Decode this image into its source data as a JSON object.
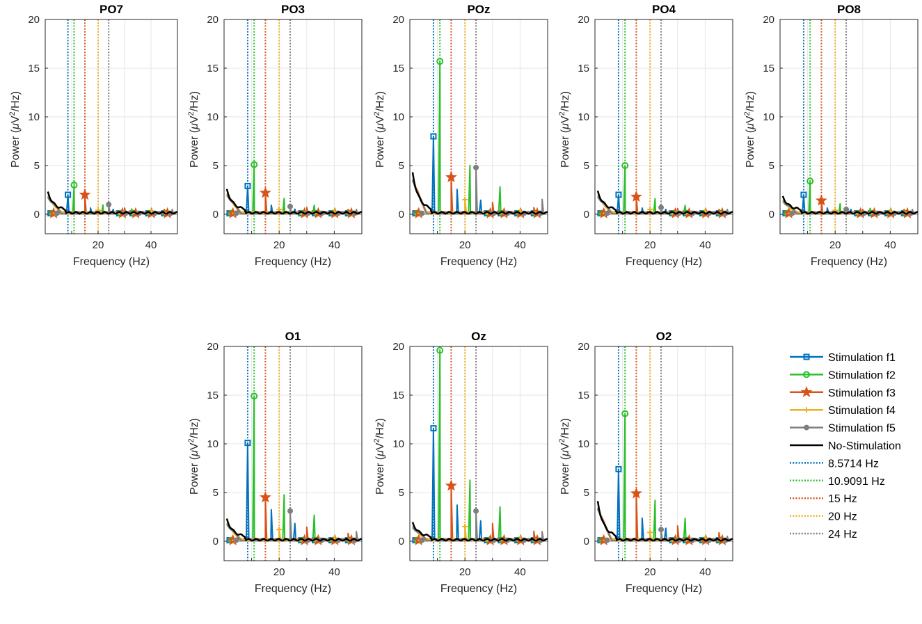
{
  "figure": {
    "legend_placement": "bottom-right"
  },
  "chart_data": {
    "type": "line",
    "xlabel": "Frequency (Hz)",
    "ylabel": {
      "prefix": "Power (",
      "mu": "μ",
      "unit1": "V",
      "sup": "2",
      "unit2": "/Hz)"
    },
    "xlim": [
      0,
      50
    ],
    "ylim": [
      -2,
      20
    ],
    "xticks": [
      "20",
      "40"
    ],
    "yticks": [
      "0",
      "5",
      "10",
      "15",
      "20"
    ],
    "grid": true,
    "colors": {
      "f1": "#0072BD",
      "f2": "#2BBF2B",
      "f3": "#D95319",
      "f4": "#EDB120",
      "f5": "#7F7F7F",
      "none": "#000000"
    },
    "series": [
      {
        "key": "f1",
        "name": "Stimulation f1",
        "style": "solid",
        "marker": "square"
      },
      {
        "key": "f2",
        "name": "Stimulation f2",
        "style": "solid",
        "marker": "circle"
      },
      {
        "key": "f3",
        "name": "Stimulation f3",
        "style": "solid",
        "marker": "star"
      },
      {
        "key": "f4",
        "name": "Stimulation f4",
        "style": "solid",
        "marker": "plus"
      },
      {
        "key": "f5",
        "name": "Stimulation f5",
        "style": "solid",
        "marker": "dot"
      },
      {
        "key": "none",
        "name": "No-Stimulation",
        "style": "solid",
        "marker": "none"
      }
    ],
    "reference_lines": [
      {
        "key": "f1",
        "freq": 8.5714,
        "label": "8.5714 Hz"
      },
      {
        "key": "f2",
        "freq": 10.9091,
        "label": "10.9091 Hz"
      },
      {
        "key": "f3",
        "freq": 15,
        "label": "15 Hz"
      },
      {
        "key": "f4",
        "freq": 20,
        "label": "20 Hz"
      },
      {
        "key": "f5",
        "freq": 24,
        "label": "24 Hz"
      }
    ],
    "panels": [
      {
        "channel": "PO7",
        "peaks": [
          2.0,
          3.0,
          2.0,
          0.4,
          1.0
        ],
        "low": 2.0
      },
      {
        "channel": "PO3",
        "peaks": [
          2.9,
          5.1,
          2.2,
          0.5,
          0.8
        ],
        "low": 2.3
      },
      {
        "channel": "POz",
        "peaks": [
          8.0,
          15.7,
          3.8,
          1.5,
          4.8
        ],
        "low": 4.2
      },
      {
        "channel": "PO4",
        "peaks": [
          2.0,
          5.0,
          1.8,
          0.5,
          0.7
        ],
        "low": 2.1
      },
      {
        "channel": "PO8",
        "peaks": [
          2.0,
          3.4,
          1.4,
          0.4,
          0.5
        ],
        "low": 1.5
      },
      {
        "channel": "O1",
        "peaks": [
          10.1,
          14.9,
          4.5,
          1.2,
          3.1
        ],
        "low": 2.0
      },
      {
        "channel": "Oz",
        "peaks": [
          11.6,
          19.6,
          5.7,
          1.5,
          3.1
        ],
        "low": 1.6
      },
      {
        "channel": "O2",
        "peaks": [
          7.4,
          13.1,
          4.9,
          0.9,
          1.2
        ],
        "low": 4.0
      }
    ]
  }
}
